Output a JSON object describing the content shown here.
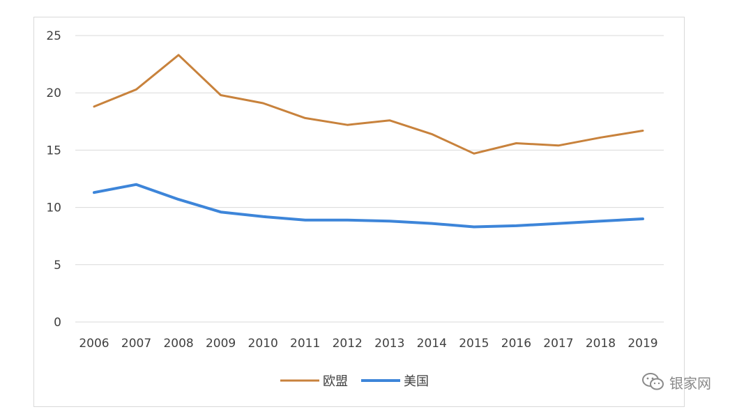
{
  "chart_data": {
    "type": "line",
    "categories": [
      "2006",
      "2007",
      "2008",
      "2009",
      "2010",
      "2011",
      "2012",
      "2013",
      "2014",
      "2015",
      "2016",
      "2017",
      "2018",
      "2019"
    ],
    "series": [
      {
        "name": "欧盟",
        "color": "#C8823C",
        "values": [
          18.8,
          20.3,
          23.3,
          19.8,
          19.1,
          17.8,
          17.2,
          17.6,
          16.4,
          14.7,
          15.6,
          15.4,
          16.1,
          16.7
        ]
      },
      {
        "name": "美国",
        "color": "#3D85D9",
        "values": [
          11.3,
          12.0,
          10.7,
          9.6,
          9.2,
          8.9,
          8.9,
          8.8,
          8.6,
          8.3,
          8.4,
          8.6,
          8.8,
          9.0
        ]
      }
    ],
    "yticks": [
      "0",
      "5",
      "10",
      "15",
      "20",
      "25"
    ],
    "ylim": [
      0,
      25
    ],
    "grid": true,
    "legend_position": "bottom"
  },
  "watermark": {
    "text": "银家网",
    "icon": "wechat-icon"
  }
}
